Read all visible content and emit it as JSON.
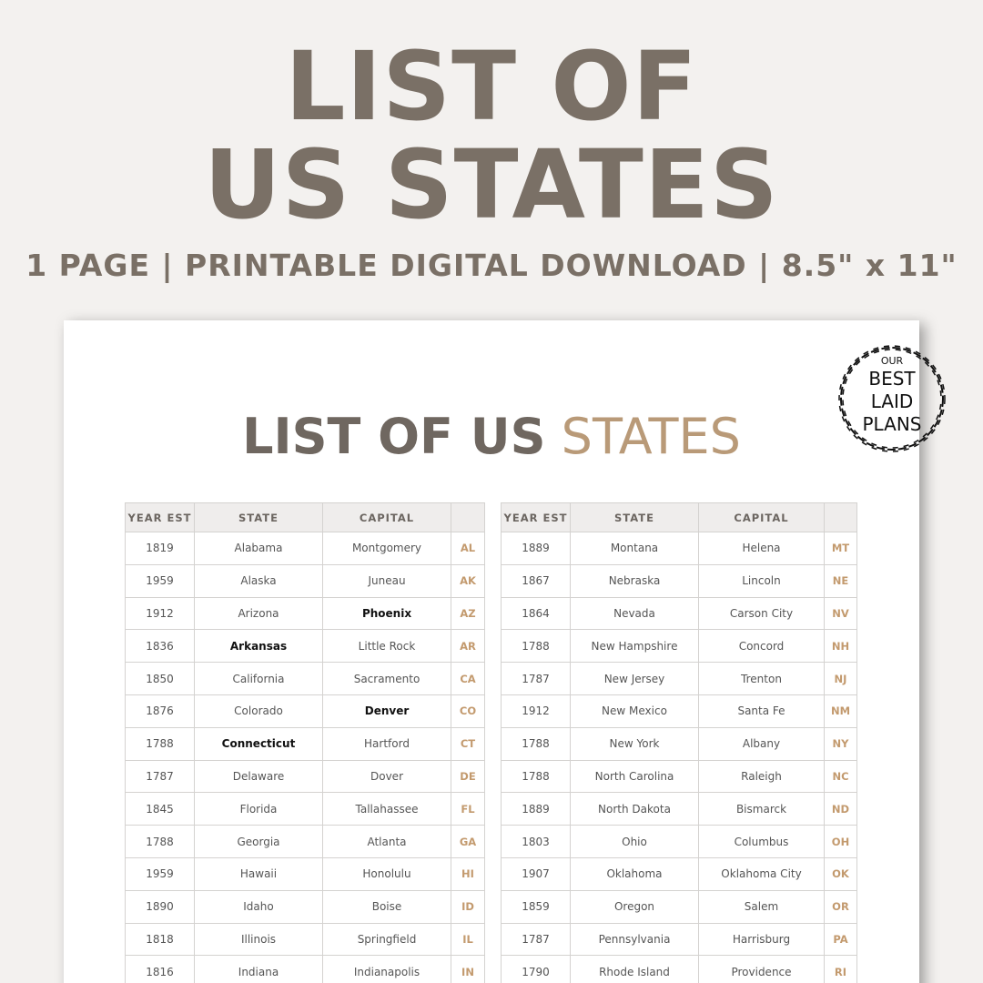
{
  "header": {
    "line1": "LIST OF",
    "line2": "US STATES",
    "subtitle": "1 PAGE | PRINTABLE DIGITAL DOWNLOAD | 8.5\" x 11\""
  },
  "logo": {
    "line1": "OUR",
    "line2": "BEST",
    "line3": "LAID",
    "line4": "PLANS"
  },
  "document": {
    "title_part1": "LIST OF US",
    "title_part2": "STATES",
    "columns": [
      "YEAR EST",
      "STATE",
      "CAPITAL",
      ""
    ],
    "accent_color": "#b99a78",
    "left_rows": [
      [
        "1819",
        "Alabama",
        "Montgomery",
        "AL"
      ],
      [
        "1959",
        "Alaska",
        "Juneau",
        "AK"
      ],
      [
        "1912",
        "Arizona",
        "Phoenix",
        "AZ"
      ],
      [
        "1836",
        "Arkansas",
        "Little Rock",
        "AR"
      ],
      [
        "1850",
        "California",
        "Sacramento",
        "CA"
      ],
      [
        "1876",
        "Colorado",
        "Denver",
        "CO"
      ],
      [
        "1788",
        "Connecticut",
        "Hartford",
        "CT"
      ],
      [
        "1787",
        "Delaware",
        "Dover",
        "DE"
      ],
      [
        "1845",
        "Florida",
        "Tallahassee",
        "FL"
      ],
      [
        "1788",
        "Georgia",
        "Atlanta",
        "GA"
      ],
      [
        "1959",
        "Hawaii",
        "Honolulu",
        "HI"
      ],
      [
        "1890",
        "Idaho",
        "Boise",
        "ID"
      ],
      [
        "1818",
        "Illinois",
        "Springfield",
        "IL"
      ],
      [
        "1816",
        "Indiana",
        "Indianapolis",
        "IN"
      ]
    ],
    "right_rows": [
      [
        "1889",
        "Montana",
        "Helena",
        "MT"
      ],
      [
        "1867",
        "Nebraska",
        "Lincoln",
        "NE"
      ],
      [
        "1864",
        "Nevada",
        "Carson City",
        "NV"
      ],
      [
        "1788",
        "New Hampshire",
        "Concord",
        "NH"
      ],
      [
        "1787",
        "New Jersey",
        "Trenton",
        "NJ"
      ],
      [
        "1912",
        "New Mexico",
        "Santa Fe",
        "NM"
      ],
      [
        "1788",
        "New York",
        "Albany",
        "NY"
      ],
      [
        "1788",
        "North Carolina",
        "Raleigh",
        "NC"
      ],
      [
        "1889",
        "North Dakota",
        "Bismarck",
        "ND"
      ],
      [
        "1803",
        "Ohio",
        "Columbus",
        "OH"
      ],
      [
        "1907",
        "Oklahoma",
        "Oklahoma City",
        "OK"
      ],
      [
        "1859",
        "Oregon",
        "Salem",
        "OR"
      ],
      [
        "1787",
        "Pennsylvania",
        "Harrisburg",
        "PA"
      ],
      [
        "1790",
        "Rhode Island",
        "Providence",
        "RI"
      ]
    ],
    "bold_cells": [
      "Phoenix",
      "Arkansas",
      "Denver",
      "Connecticut"
    ]
  }
}
